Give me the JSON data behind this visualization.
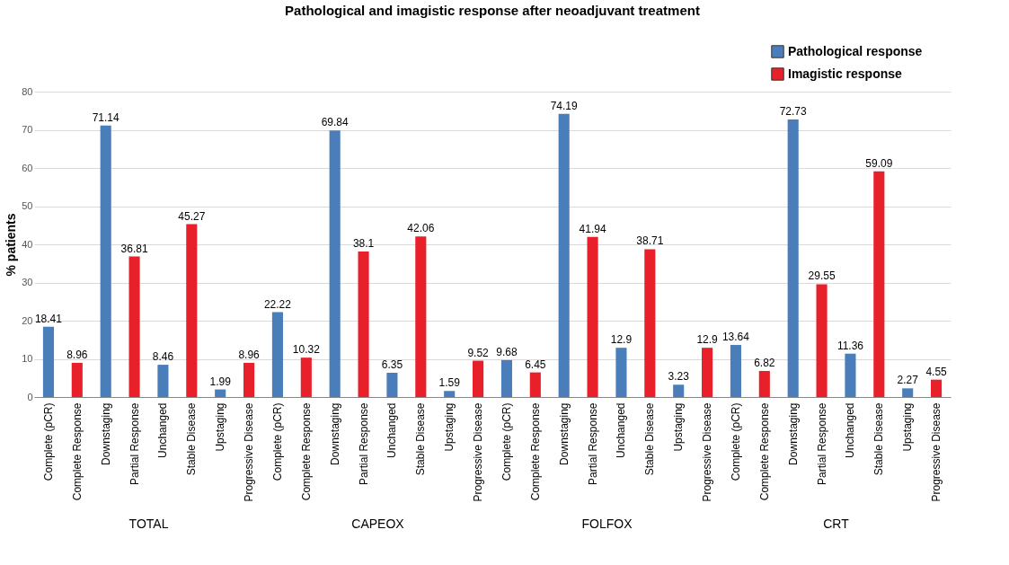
{
  "chart_data": {
    "type": "bar",
    "title": "Pathological and imagistic response after neoadjuvant treatment",
    "ylabel": "% patients",
    "categories": [
      "Complete (pCR)",
      "Complete Response",
      "Downstaging",
      "Partial Response",
      "Unchanged",
      "Stable Disease",
      "Upstaging",
      "Progressive Disease",
      "Complete (pCR)",
      "Complete Response",
      "Downstaging",
      "Partial Response",
      "Unchanged",
      "Stable Disease",
      "Upstaging",
      "Progressive Disease",
      "Complete (pCR)",
      "Complete Response",
      "Downstaging",
      "Partial Response",
      "Unchanged",
      "Stable Disease",
      "Upstaging",
      "Progressive Disease",
      "Complete (pCR)",
      "Complete Response",
      "Downstaging",
      "Partial Response",
      "Unchanged",
      "Stable Disease",
      "Upstaging",
      "Progressive Disease"
    ],
    "series": [
      {
        "name": "Pathological response",
        "color": "#4a7ebb",
        "values": [
          18.41,
          null,
          71.14,
          null,
          8.46,
          null,
          1.99,
          null,
          22.22,
          null,
          69.84,
          null,
          6.35,
          null,
          1.59,
          null,
          9.68,
          null,
          74.19,
          null,
          12.9,
          null,
          3.23,
          null,
          13.64,
          null,
          72.73,
          null,
          11.36,
          null,
          2.27,
          null
        ]
      },
      {
        "name": "Imagistic response",
        "color": "#e8202a",
        "values": [
          null,
          8.96,
          null,
          36.81,
          null,
          45.27,
          null,
          8.96,
          null,
          10.32,
          null,
          38.1,
          null,
          42.06,
          null,
          9.52,
          null,
          6.45,
          null,
          41.94,
          null,
          38.71,
          null,
          12.9,
          null,
          6.82,
          null,
          29.55,
          null,
          59.09,
          null,
          4.55
        ]
      }
    ],
    "annotations": [
      "TOTAL",
      "CAPEOX",
      "FOLFOX",
      "CRT"
    ],
    "ylim": [
      0,
      80
    ],
    "yticks": [
      0,
      10,
      20,
      30,
      40,
      50,
      60,
      70,
      80
    ],
    "grid": "y",
    "legend": "top right",
    "data_labels": true
  }
}
